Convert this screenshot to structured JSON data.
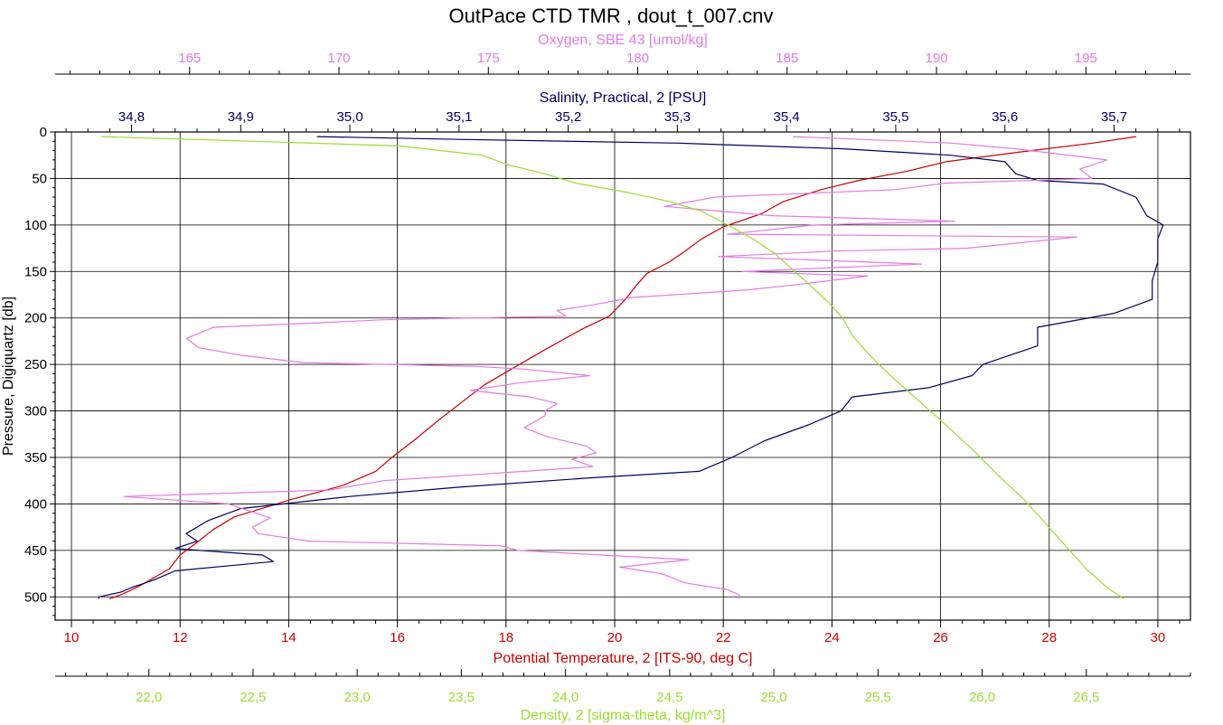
{
  "chart_data": {
    "type": "line",
    "title": "OutPace CTD TMR , dout_t_007.cnv",
    "y_axis": {
      "label": "Pressure, Digiquartz [db]",
      "range": [
        0,
        525
      ],
      "ticks": [
        0,
        50,
        100,
        150,
        200,
        250,
        300,
        350,
        400,
        450,
        500
      ],
      "inverted": true
    },
    "x_axes": [
      {
        "key": "oxygen",
        "label": "Oxygen, SBE 43 [umol/kg]",
        "color": "#e47ae4",
        "position": "top-1",
        "range": [
          160.5,
          198.5
        ],
        "major_ticks": [
          165,
          170,
          175,
          180,
          185,
          190,
          195
        ],
        "tick_labels": [
          "165",
          "170",
          "175",
          "180",
          "185",
          "190",
          "195"
        ]
      },
      {
        "key": "salinity",
        "label": "Salinity, Practical, 2 [PSU]",
        "color": "#000066",
        "position": "top-2",
        "range": [
          34.73,
          35.77
        ],
        "major_ticks": [
          34.8,
          34.9,
          35.0,
          35.1,
          35.2,
          35.3,
          35.4,
          35.5,
          35.6,
          35.7
        ],
        "tick_labels": [
          "34,8",
          "34,9",
          "35,0",
          "35,1",
          "35,2",
          "35,3",
          "35,4",
          "35,5",
          "35,6",
          "35,7"
        ]
      },
      {
        "key": "temperature",
        "label": "Potential Temperature, 2 [ITS-90, deg C]",
        "color": "#cc0000",
        "position": "bottom-1",
        "range": [
          9.7,
          30.6
        ],
        "major_ticks": [
          10,
          12,
          14,
          16,
          18,
          20,
          22,
          24,
          26,
          28,
          30
        ],
        "tick_labels": [
          "10",
          "12",
          "14",
          "16",
          "18",
          "20",
          "22",
          "24",
          "26",
          "28",
          "30"
        ]
      },
      {
        "key": "density",
        "label": "Density, 2 [sigma-theta, kg/m^3]",
        "color": "#99dd33",
        "position": "bottom-2",
        "range": [
          21.55,
          27.0
        ],
        "major_ticks": [
          22.0,
          22.5,
          23.0,
          23.5,
          24.0,
          24.5,
          25.0,
          25.5,
          26.0,
          26.5
        ],
        "tick_labels": [
          "22,0",
          "22,5",
          "23,0",
          "23,5",
          "24,0",
          "24,5",
          "25,0",
          "25,5",
          "26,0",
          "26,5"
        ]
      }
    ],
    "grid": true,
    "series": [
      {
        "key": "temperature",
        "color": "#cc0000",
        "points": [
          [
            29.6,
            5
          ],
          [
            28.8,
            12
          ],
          [
            27.4,
            22
          ],
          [
            26.1,
            32
          ],
          [
            25.4,
            42
          ],
          [
            24.5,
            52
          ],
          [
            23.8,
            62
          ],
          [
            23.1,
            75
          ],
          [
            22.7,
            88
          ],
          [
            22.0,
            102
          ],
          [
            21.6,
            115
          ],
          [
            21.3,
            128
          ],
          [
            21.0,
            140
          ],
          [
            20.6,
            152
          ],
          [
            20.4,
            165
          ],
          [
            20.2,
            180
          ],
          [
            19.9,
            198
          ],
          [
            19.4,
            212
          ],
          [
            19.0,
            225
          ],
          [
            18.6,
            238
          ],
          [
            18.1,
            255
          ],
          [
            17.6,
            272
          ],
          [
            17.2,
            290
          ],
          [
            16.8,
            308
          ],
          [
            16.3,
            332
          ],
          [
            15.9,
            350
          ],
          [
            15.6,
            365
          ],
          [
            15.0,
            380
          ],
          [
            14.0,
            396
          ],
          [
            13.0,
            414
          ],
          [
            12.6,
            428
          ],
          [
            12.3,
            442
          ],
          [
            12.0,
            455
          ],
          [
            11.8,
            470
          ],
          [
            11.5,
            480
          ],
          [
            11.2,
            490
          ],
          [
            10.9,
            498
          ],
          [
            10.7,
            502
          ]
        ]
      },
      {
        "key": "salinity",
        "color": "#000066",
        "points": [
          [
            34.97,
            5
          ],
          [
            35.1,
            8
          ],
          [
            35.3,
            12
          ],
          [
            35.45,
            18
          ],
          [
            35.55,
            25
          ],
          [
            35.6,
            32
          ],
          [
            35.61,
            45
          ],
          [
            35.63,
            52
          ],
          [
            35.69,
            56
          ],
          [
            35.72,
            70
          ],
          [
            35.73,
            90
          ],
          [
            35.745,
            100
          ],
          [
            35.74,
            115
          ],
          [
            35.74,
            140
          ],
          [
            35.735,
            160
          ],
          [
            35.735,
            180
          ],
          [
            35.7,
            195
          ],
          [
            35.63,
            210
          ],
          [
            35.63,
            230
          ],
          [
            35.58,
            250
          ],
          [
            35.57,
            262
          ],
          [
            35.53,
            275
          ],
          [
            35.46,
            285
          ],
          [
            35.45,
            300
          ],
          [
            35.42,
            315
          ],
          [
            35.38,
            332
          ],
          [
            35.35,
            350
          ],
          [
            35.32,
            365
          ],
          [
            35.22,
            372
          ],
          [
            35.1,
            382
          ],
          [
            35.0,
            392
          ],
          [
            34.9,
            405
          ],
          [
            34.87,
            418
          ],
          [
            34.86,
            425
          ],
          [
            34.85,
            432
          ],
          [
            34.86,
            440
          ],
          [
            34.84,
            448
          ],
          [
            34.92,
            455
          ],
          [
            34.93,
            462
          ],
          [
            34.84,
            472
          ],
          [
            34.82,
            482
          ],
          [
            34.8,
            490
          ],
          [
            34.79,
            495
          ],
          [
            34.77,
            500
          ],
          [
            34.77,
            502
          ]
        ]
      },
      {
        "key": "oxygen",
        "color": "#e47ae4",
        "points": [
          [
            185.2,
            5
          ],
          [
            190.5,
            12
          ],
          [
            192.6,
            18
          ],
          [
            195.7,
            30
          ],
          [
            194.8,
            40
          ],
          [
            195.2,
            50
          ],
          [
            190.3,
            55
          ],
          [
            188.6,
            62
          ],
          [
            182.6,
            70
          ],
          [
            180.9,
            80
          ],
          [
            184.5,
            90
          ],
          [
            190.6,
            96
          ],
          [
            185.9,
            100
          ],
          [
            183.0,
            110
          ],
          [
            194.7,
            113
          ],
          [
            191.0,
            125
          ],
          [
            186.6,
            128
          ],
          [
            182.7,
            134
          ],
          [
            189.5,
            142
          ],
          [
            183.5,
            150
          ],
          [
            187.7,
            155
          ],
          [
            185.1,
            165
          ],
          [
            183.6,
            170
          ],
          [
            179.8,
            178
          ],
          [
            178.5,
            186
          ],
          [
            177.3,
            192
          ],
          [
            177.6,
            198
          ],
          [
            171.4,
            202
          ],
          [
            169.5,
            205
          ],
          [
            165.8,
            210
          ],
          [
            164.9,
            222
          ],
          [
            165.3,
            232
          ],
          [
            166.7,
            240
          ],
          [
            168.8,
            248
          ],
          [
            174.5,
            252
          ],
          [
            176.2,
            255
          ],
          [
            178.4,
            262
          ],
          [
            176.0,
            270
          ],
          [
            174.4,
            278
          ],
          [
            176.4,
            285
          ],
          [
            177.3,
            292
          ],
          [
            176.9,
            300
          ],
          [
            176.9,
            305
          ],
          [
            176.2,
            318
          ],
          [
            177.0,
            328
          ],
          [
            178.3,
            338
          ],
          [
            178.6,
            345
          ],
          [
            177.8,
            352
          ],
          [
            178.5,
            360
          ],
          [
            176.2,
            365
          ],
          [
            171.5,
            375
          ],
          [
            169.7,
            385
          ],
          [
            162.8,
            392
          ],
          [
            166.3,
            400
          ],
          [
            167.7,
            415
          ],
          [
            167.1,
            425
          ],
          [
            167.3,
            432
          ],
          [
            169.0,
            440
          ],
          [
            175.4,
            445
          ],
          [
            176.0,
            450
          ],
          [
            178.8,
            455
          ],
          [
            181.7,
            460
          ],
          [
            179.4,
            468
          ],
          [
            180.8,
            475
          ],
          [
            181.6,
            485
          ],
          [
            183.0,
            492
          ],
          [
            183.4,
            498
          ],
          [
            183.4,
            502
          ]
        ]
      },
      {
        "key": "density",
        "color": "#99dd33",
        "points": [
          [
            21.77,
            5
          ],
          [
            22.5,
            10
          ],
          [
            23.2,
            15
          ],
          [
            23.6,
            25
          ],
          [
            23.72,
            35
          ],
          [
            23.9,
            45
          ],
          [
            24.05,
            55
          ],
          [
            24.3,
            65
          ],
          [
            24.5,
            75
          ],
          [
            24.65,
            85
          ],
          [
            24.78,
            100
          ],
          [
            24.9,
            115
          ],
          [
            25.0,
            130
          ],
          [
            25.1,
            150
          ],
          [
            25.2,
            170
          ],
          [
            25.27,
            185
          ],
          [
            25.33,
            200
          ],
          [
            25.38,
            220
          ],
          [
            25.46,
            240
          ],
          [
            25.55,
            260
          ],
          [
            25.65,
            280
          ],
          [
            25.75,
            300
          ],
          [
            25.85,
            320
          ],
          [
            25.97,
            345
          ],
          [
            26.08,
            370
          ],
          [
            26.2,
            395
          ],
          [
            26.3,
            420
          ],
          [
            26.4,
            445
          ],
          [
            26.5,
            470
          ],
          [
            26.6,
            490
          ],
          [
            26.68,
            502
          ]
        ]
      }
    ]
  }
}
